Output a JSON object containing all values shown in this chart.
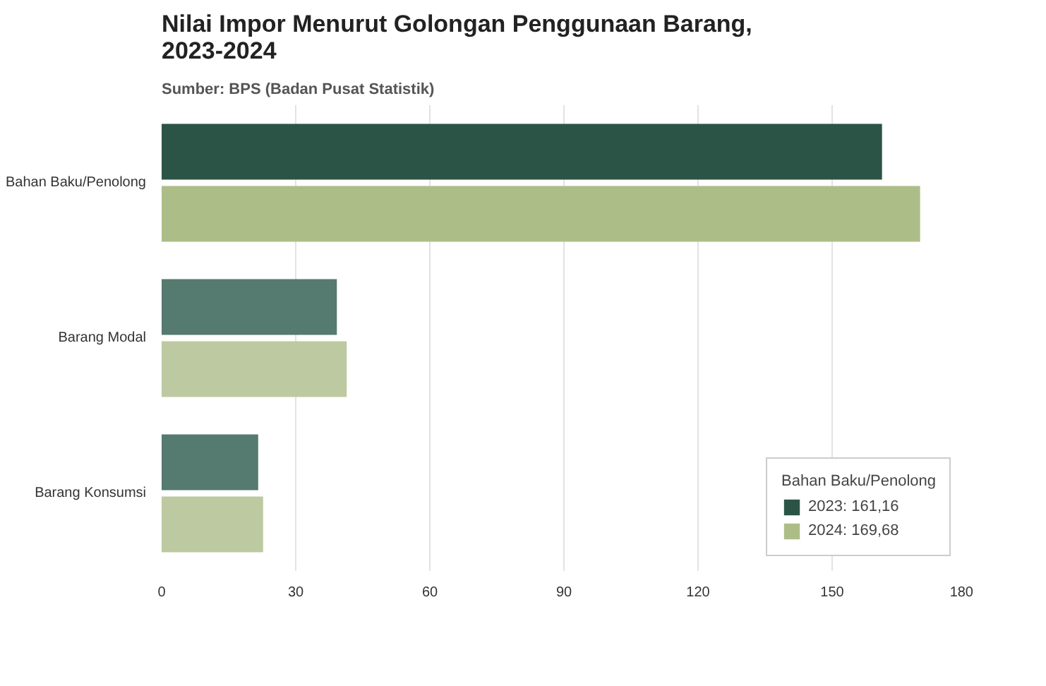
{
  "chart_data": {
    "type": "bar",
    "orientation": "horizontal",
    "title": "Nilai Impor Menurut Golongan Penggunaan Barang, 2023-2024",
    "subtitle": "Sumber: BPS (Badan Pusat Statistik)",
    "categories": [
      "Bahan Baku/Penolong",
      "Barang Modal",
      "Barang Konsumsi"
    ],
    "legend_title": "Bahan Baku/Penolong",
    "series": [
      {
        "name": "2023: 161,16",
        "colors": [
          "#2b5447",
          "#557a6f",
          "#557a6f"
        ],
        "values": [
          161.16,
          39.2,
          21.6
        ]
      },
      {
        "name": "2024: 169,68",
        "colors": [
          "#adbd88",
          "#bdc9a0",
          "#bdc9a0"
        ],
        "values": [
          169.68,
          41.4,
          22.7
        ]
      }
    ],
    "xlim": [
      0,
      180
    ],
    "xticks": [
      0,
      30,
      60,
      90,
      120,
      150,
      180
    ],
    "grid": "x",
    "legend": "bottom right"
  }
}
